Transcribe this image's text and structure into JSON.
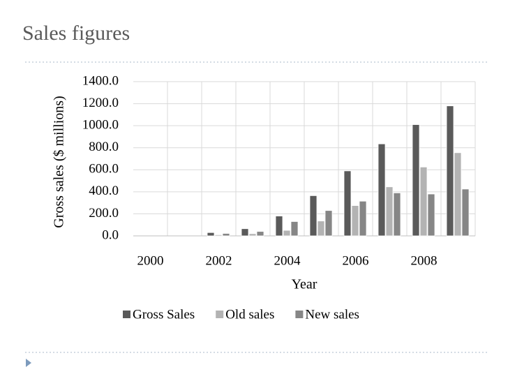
{
  "chart_data": {
    "type": "bar",
    "title": "Sales figures",
    "y_label": "Gross sales ($ millions)",
    "x_label": "Year",
    "categories": [
      "2000",
      null,
      "2002",
      null,
      "2004",
      null,
      "2006",
      null,
      "2008",
      null
    ],
    "series": [
      {
        "name": "Gross Sales",
        "color": "#5a5a5a",
        "values": [
          0,
          0,
          30,
          65,
          180,
          365,
          590,
          835,
          1010,
          1180
        ]
      },
      {
        "name": "Old sales",
        "color": "#b3b3b3",
        "values": [
          0,
          0,
          10,
          20,
          50,
          135,
          275,
          445,
          625,
          755
        ]
      },
      {
        "name": "New sales",
        "color": "#868686",
        "values": [
          0,
          0,
          22,
          40,
          130,
          230,
          315,
          390,
          380,
          425
        ]
      }
    ],
    "ylim": [
      0,
      1400
    ],
    "yticks": [
      {
        "value": 0,
        "label": "0.0"
      },
      {
        "value": 200,
        "label": "200.0"
      },
      {
        "value": 400,
        "label": "400.0"
      },
      {
        "value": 600,
        "label": "600.0"
      },
      {
        "value": 800,
        "label": "800.0"
      },
      {
        "value": 1000,
        "label": "1000.0"
      },
      {
        "value": 1200,
        "label": "1200.0"
      },
      {
        "value": 1400,
        "label": "1400.0"
      }
    ],
    "grid": true,
    "legend": "bottom"
  }
}
